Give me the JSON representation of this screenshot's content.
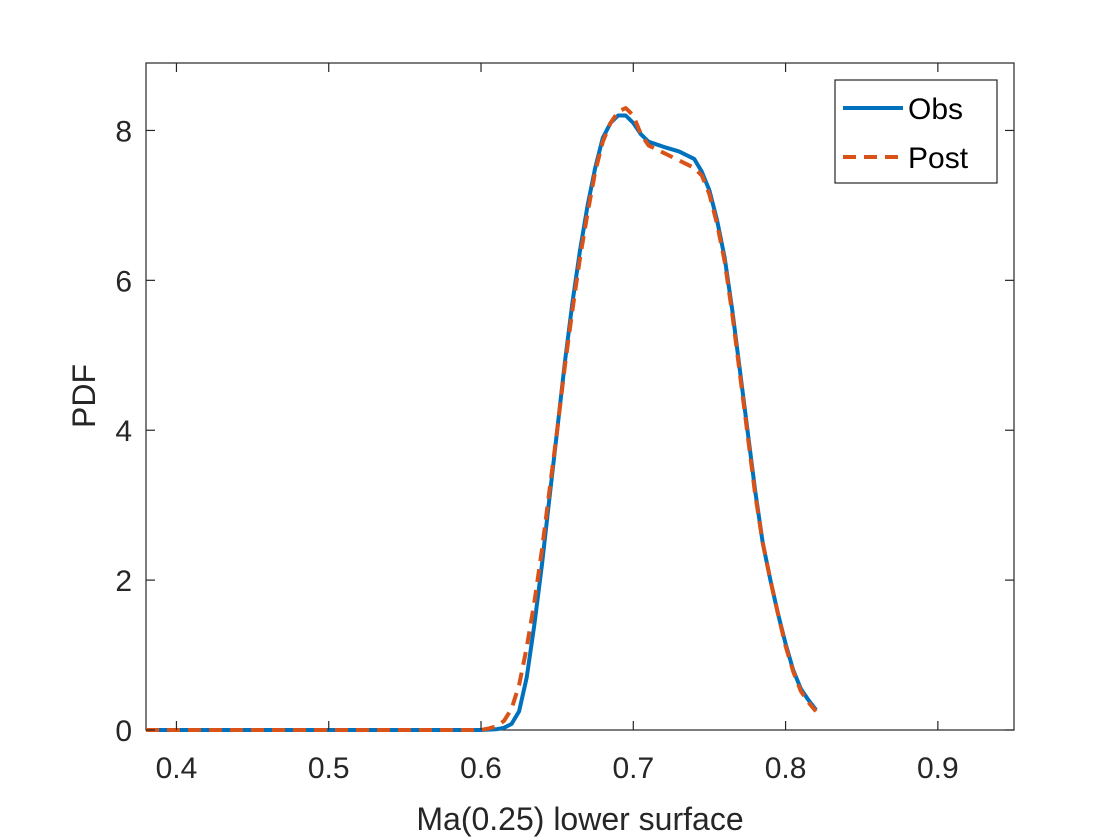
{
  "chart_data": {
    "type": "line",
    "xlabel": "Ma(0.25) lower surface",
    "ylabel": "PDF",
    "xlim": [
      0.38,
      0.95
    ],
    "ylim": [
      0,
      8.9
    ],
    "xticks": [
      0.4,
      0.5,
      0.6,
      0.7,
      0.8,
      0.9
    ],
    "yticks": [
      0,
      2,
      4,
      6,
      8
    ],
    "xtick_labels": [
      "0.4",
      "0.5",
      "0.6",
      "0.7",
      "0.8",
      "0.9"
    ],
    "ytick_labels": [
      "0",
      "2",
      "4",
      "6",
      "8"
    ],
    "grid": false,
    "legend_position": "top-right",
    "series": [
      {
        "name": "Obs",
        "color": "#0072BD",
        "style": "solid",
        "x": [
          0.38,
          0.5,
          0.6,
          0.61,
          0.615,
          0.62,
          0.625,
          0.63,
          0.635,
          0.64,
          0.645,
          0.65,
          0.655,
          0.66,
          0.665,
          0.67,
          0.675,
          0.68,
          0.685,
          0.69,
          0.695,
          0.7,
          0.705,
          0.71,
          0.72,
          0.73,
          0.74,
          0.745,
          0.75,
          0.755,
          0.76,
          0.765,
          0.77,
          0.775,
          0.78,
          0.785,
          0.79,
          0.795,
          0.8,
          0.805,
          0.81,
          0.815,
          0.82
        ],
        "y": [
          0,
          0,
          0,
          0.01,
          0.03,
          0.08,
          0.25,
          0.7,
          1.4,
          2.2,
          3.1,
          4.0,
          4.9,
          5.7,
          6.4,
          7.0,
          7.5,
          7.9,
          8.1,
          8.2,
          8.2,
          8.1,
          7.95,
          7.85,
          7.78,
          7.72,
          7.62,
          7.45,
          7.2,
          6.8,
          6.3,
          5.6,
          4.8,
          4.0,
          3.2,
          2.5,
          2.0,
          1.55,
          1.15,
          0.8,
          0.55,
          0.4,
          0.27
        ]
      },
      {
        "name": "Post",
        "color": "#D95319",
        "style": "dashed",
        "x": [
          0.38,
          0.5,
          0.6,
          0.605,
          0.61,
          0.615,
          0.62,
          0.625,
          0.63,
          0.635,
          0.64,
          0.645,
          0.65,
          0.655,
          0.66,
          0.665,
          0.67,
          0.675,
          0.68,
          0.685,
          0.69,
          0.695,
          0.7,
          0.705,
          0.71,
          0.72,
          0.73,
          0.74,
          0.745,
          0.75,
          0.755,
          0.76,
          0.765,
          0.77,
          0.775,
          0.78,
          0.785,
          0.79,
          0.795,
          0.8,
          0.805,
          0.81,
          0.815,
          0.82
        ],
        "y": [
          0,
          0,
          0,
          0.02,
          0.05,
          0.12,
          0.28,
          0.6,
          1.1,
          1.7,
          2.4,
          3.2,
          4.0,
          4.85,
          5.6,
          6.3,
          6.9,
          7.45,
          7.85,
          8.1,
          8.25,
          8.3,
          8.2,
          7.95,
          7.8,
          7.7,
          7.6,
          7.5,
          7.4,
          7.15,
          6.75,
          6.25,
          5.55,
          4.75,
          3.95,
          3.15,
          2.5,
          2.0,
          1.55,
          1.12,
          0.78,
          0.52,
          0.37,
          0.25
        ]
      }
    ]
  }
}
